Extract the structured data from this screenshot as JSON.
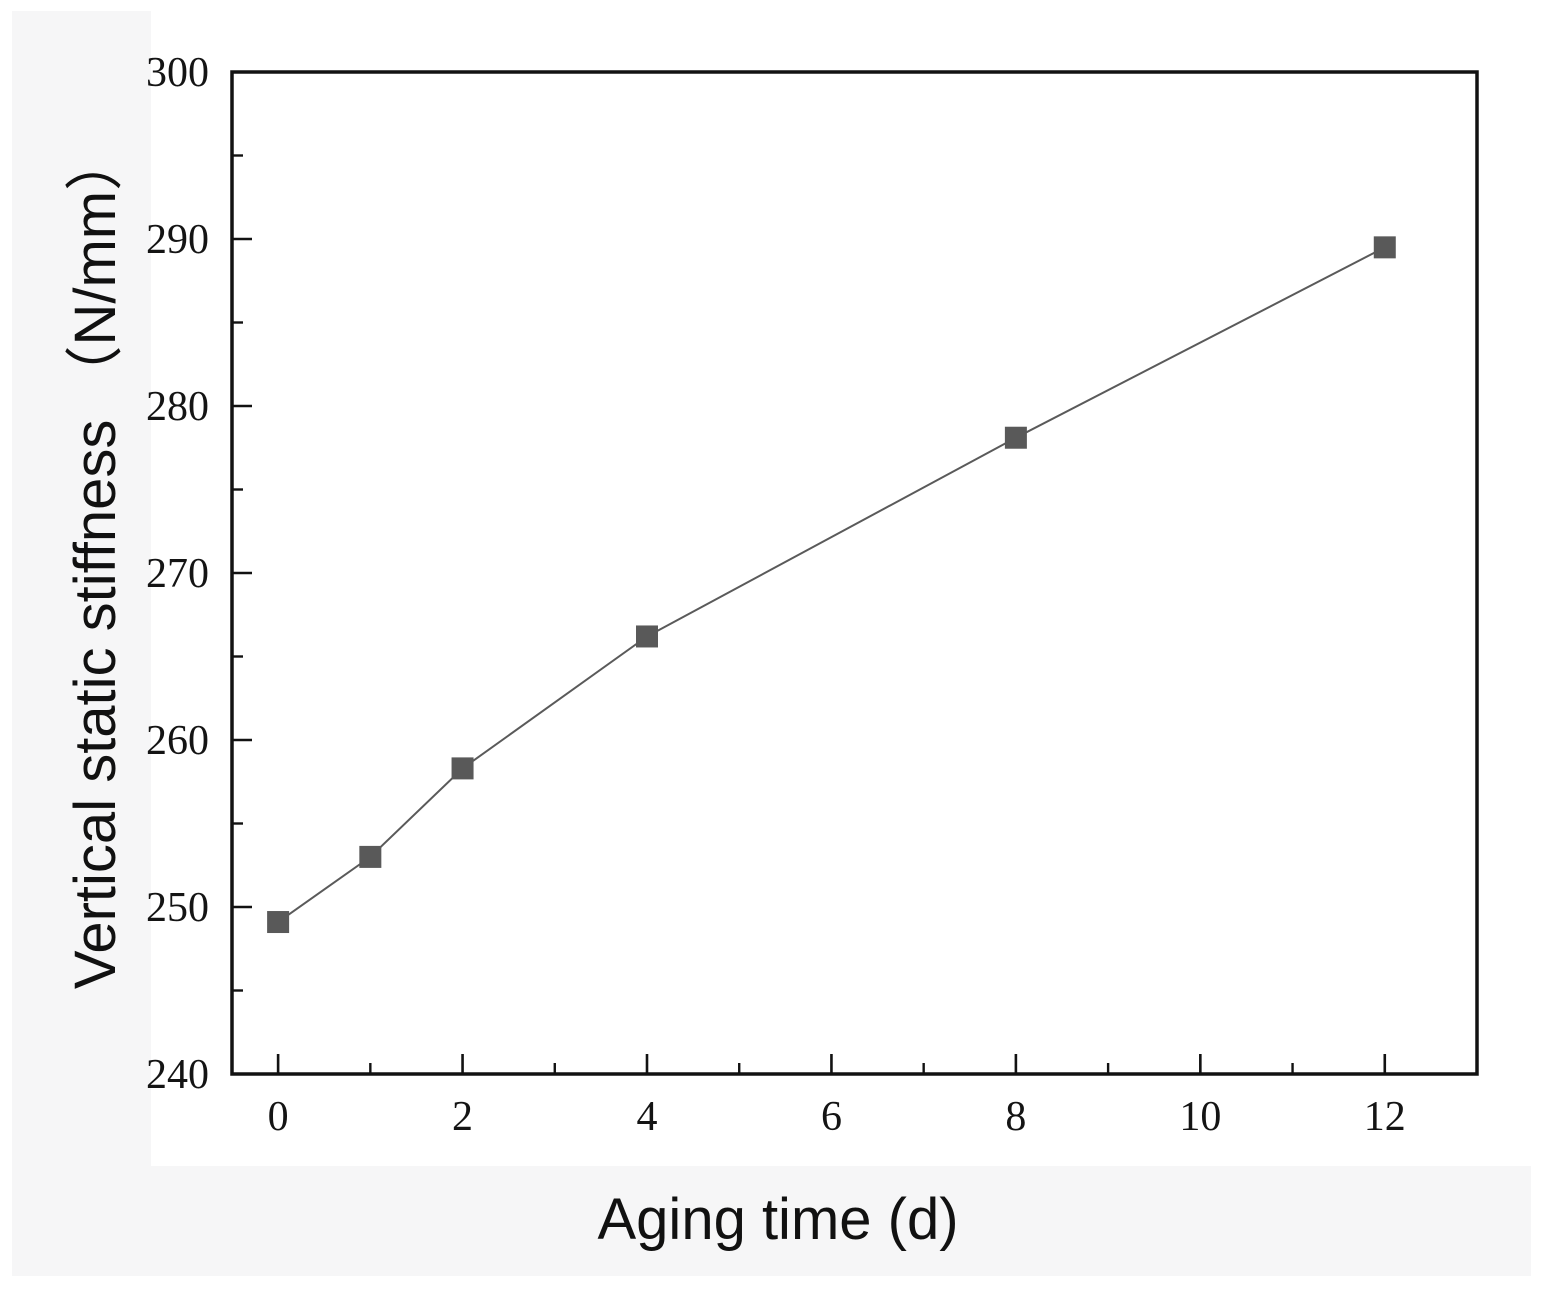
{
  "page": {
    "background_color": "#ffffff",
    "margin_panel_color": "#f6f6f7"
  },
  "chart_data": {
    "type": "line",
    "title": "",
    "xlabel": "Aging time (d)",
    "ylabel": "Vertical static stiffness （N/mm）",
    "x": [
      0,
      1,
      2,
      4,
      8,
      12
    ],
    "series": [
      {
        "name": "Vertical static stiffness",
        "values": [
          249.1,
          253.0,
          258.3,
          266.2,
          278.1,
          289.5
        ]
      }
    ],
    "xlim": [
      -0.5,
      13
    ],
    "ylim": [
      240,
      300
    ],
    "x_major_ticks": [
      0,
      2,
      4,
      6,
      8,
      10,
      12
    ],
    "x_minor_ticks": [
      1,
      3,
      5,
      7,
      9,
      11
    ],
    "y_major_ticks": [
      240,
      250,
      260,
      270,
      280,
      290,
      300
    ],
    "y_minor_ticks": [
      245,
      255,
      265,
      275,
      285,
      295
    ],
    "x_tick_labels": [
      "0",
      "2",
      "4",
      "6",
      "8",
      "10",
      "12"
    ],
    "y_tick_labels": [
      "240",
      "250",
      "260",
      "270",
      "280",
      "290",
      "300"
    ],
    "grid": false,
    "legend": "none",
    "marker_shape": "square",
    "marker_color": "#595959",
    "marker_size_px": 22,
    "line_color": "#5a5a5a",
    "axis_color": "#121212",
    "tick_label_color": "#141414"
  }
}
